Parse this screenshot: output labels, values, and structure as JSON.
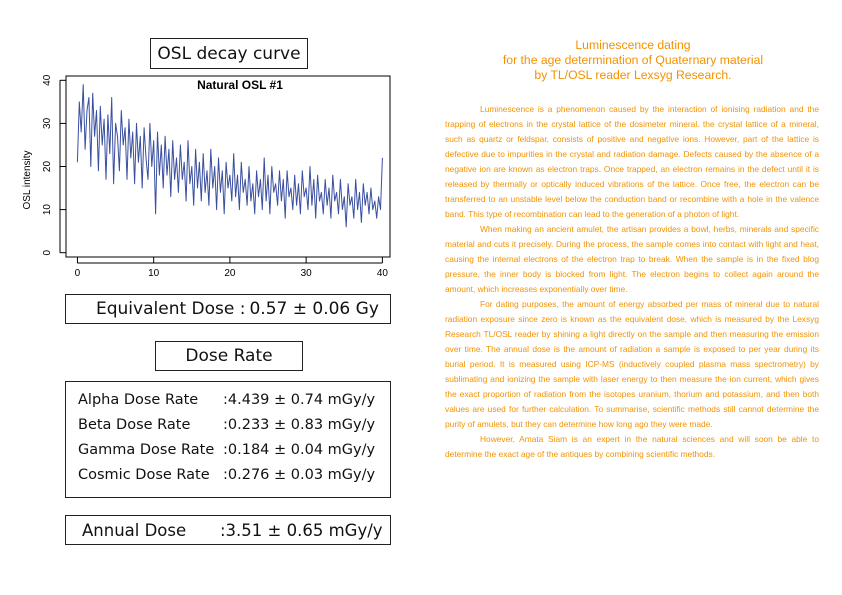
{
  "left_panel": {
    "osl_title": "OSL decay curve",
    "equivalent_dose": {
      "label": "Equivalent Dose :",
      "value": "0.57 ±  0.06 Gy"
    },
    "dose_rate_title": "Dose Rate",
    "rates": [
      {
        "label": "Alpha Dose Rate",
        "value": ":4.439 ±  0.74 mGy/y"
      },
      {
        "label": "Beta Dose Rate",
        "value": ":0.233 ±  0.83 mGy/y"
      },
      {
        "label": "Gamma Dose Rate",
        "value": ":0.184 ±  0.04 mGy/y"
      },
      {
        "label": "Cosmic Dose Rate",
        "value": ":0.276 ± 0.03  mGy/y"
      }
    ],
    "annual_dose": {
      "label": "Annual Dose",
      "value": ":3.51 ±  0.65 mGy/y"
    }
  },
  "chart_data": {
    "type": "line",
    "title": "Natural OSL #1",
    "xlabel": "",
    "ylabel": "OSL intensity",
    "xlim": [
      -1.5,
      41
    ],
    "ylim": [
      -1,
      41
    ],
    "xticks": [
      0,
      10,
      20,
      30,
      40
    ],
    "yticks": [
      0,
      10,
      20,
      30,
      40
    ],
    "grid": false,
    "line_color": "#3a4fa0",
    "series": [
      {
        "x": [
          0.0,
          0.25,
          0.5,
          0.75,
          1.0,
          1.25,
          1.5,
          1.75,
          2.0,
          2.25,
          2.5,
          2.75,
          3.0,
          3.25,
          3.5,
          3.75,
          4.0,
          4.25,
          4.5,
          4.75,
          5.0,
          5.25,
          5.5,
          5.75,
          6.0,
          6.25,
          6.5,
          6.75,
          7.0,
          7.25,
          7.5,
          7.75,
          8.0,
          8.25,
          8.5,
          8.75,
          9.0,
          9.25,
          9.5,
          9.75,
          10.0,
          10.25,
          10.5,
          10.75,
          11.0,
          11.25,
          11.5,
          11.75,
          12.0,
          12.25,
          12.5,
          12.75,
          13.0,
          13.25,
          13.5,
          13.75,
          14.0,
          14.25,
          14.5,
          14.75,
          15.0,
          15.25,
          15.5,
          15.75,
          16.0,
          16.25,
          16.5,
          16.75,
          17.0,
          17.25,
          17.5,
          17.75,
          18.0,
          18.25,
          18.5,
          18.75,
          19.0,
          19.25,
          19.5,
          19.75,
          20.0,
          20.25,
          20.5,
          20.75,
          21.0,
          21.25,
          21.5,
          21.75,
          22.0,
          22.25,
          22.5,
          22.75,
          23.0,
          23.25,
          23.5,
          23.75,
          24.0,
          24.25,
          24.5,
          24.75,
          25.0,
          25.25,
          25.5,
          25.75,
          26.0,
          26.25,
          26.5,
          26.75,
          27.0,
          27.25,
          27.5,
          27.75,
          28.0,
          28.25,
          28.5,
          28.75,
          29.0,
          29.25,
          29.5,
          29.75,
          30.0,
          30.25,
          30.5,
          30.75,
          31.0,
          31.25,
          31.5,
          31.75,
          32.0,
          32.25,
          32.5,
          32.75,
          33.0,
          33.25,
          33.5,
          33.75,
          34.0,
          34.25,
          34.5,
          34.75,
          35.0,
          35.25,
          35.5,
          35.75,
          36.0,
          36.25,
          36.5,
          36.75,
          37.0,
          37.25,
          37.5,
          37.75,
          38.0,
          38.25,
          38.5,
          38.75,
          39.0,
          39.25,
          39.5,
          39.75,
          40.0
        ],
        "y": [
          21,
          35,
          28,
          39,
          24,
          33,
          36,
          20,
          37,
          27,
          33,
          19,
          34,
          25,
          31,
          17,
          32,
          23,
          36,
          16,
          30,
          27,
          19,
          33,
          25,
          29,
          17,
          31,
          22,
          28,
          16,
          30,
          21,
          27,
          15,
          29,
          22,
          17,
          30,
          20,
          26,
          9,
          28,
          18,
          25,
          15,
          27,
          18,
          24,
          13,
          26,
          17,
          22,
          14,
          25,
          17,
          21,
          12,
          26,
          16,
          20,
          11,
          24,
          15,
          21,
          12,
          23,
          14,
          19,
          11,
          24,
          15,
          20,
          10,
          22,
          14,
          19,
          9,
          21,
          15,
          18,
          12,
          23,
          13,
          18,
          10,
          21,
          14,
          17,
          11,
          20,
          12,
          16,
          9,
          19,
          13,
          17,
          10,
          22,
          12,
          18,
          9,
          20,
          14,
          16,
          11,
          19,
          12,
          17,
          8,
          19,
          13,
          15,
          10,
          18,
          11,
          16,
          9,
          19,
          13,
          15,
          10,
          20,
          11,
          17,
          8,
          18,
          12,
          14,
          9,
          17,
          11,
          15,
          8,
          18,
          12,
          14,
          9,
          17,
          10,
          13,
          6,
          16,
          11,
          13,
          8,
          17,
          10,
          14,
          7,
          16,
          11,
          14,
          9,
          15,
          10,
          12,
          8,
          13,
          10,
          22
        ]
      }
    ]
  },
  "document": {
    "title_lines": [
      "Luminescence dating",
      "for the age determination of Quaternary material",
      "by TL/OSL reader Lexsyg Research."
    ],
    "paragraphs": [
      "Luminescence is a phenomenon caused by the interaction of ionising radiation and the trapping of electrons in the crystal lattice of the dosimeter mineral. the crystal lattice of a mineral, such as quartz or feldspar, consists of positive and negative ions. However, part of the lattice is defective due to impurities in the crystal and radiation damage. Defects caused by the absence of a negative ion are known as electron traps. Once trapped, an electron remains in the defect until it is released by thermally or optically induced vibrations of the lattice. Once free, the electron can be transferred to an unstable level below the conduction band or recombine with a hole in the valence band. This type of recombination can lead to the generation of a photon of light.",
      "When making an ancient amulet, the artisan provides a bowl, herbs, minerals and specific material and cuts it precisely. During the process, the sample comes into contact with light and heat, causing the internal electrons of the electron trap to break. When the sample is in the fixed blog pressure, the inner body is blocked from light. The electron begins to collect again around the amount, which increases exponentially over time.",
      "For dating purposes, the amount of energy absorbed per mass of mineral due to natural radiation exposure since zero is known as the equivalent dose, which is measured by the Lexsyg Research TL/OSL reader by shining a light directly on the sample and then measuring the emission over time. The annual dose is the amount of radiation a sample is exposed to per year during its burial period. It is measured using ICP-MS (inductively coupled plasma mass spectrometry) by sublimating and ionizing the sample with laser energy to then measure the ion current, which gives the exact proportion of radiation from the isotopes uranium, thorium and potassium, and then both values are used for further calculation. To summarise, scientific methods still cannot determine the purity of amulets, but they can determine how long ago they were made.",
      "However, Amata Siam is an expert in the natural sciences and will soon be able to determine the exact age of the antiques by combining scientific methods."
    ]
  }
}
